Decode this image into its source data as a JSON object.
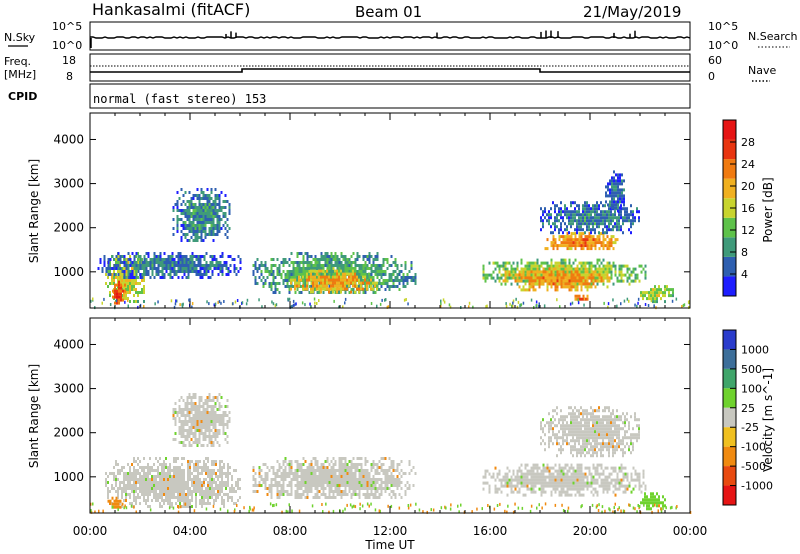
{
  "header": {
    "station": "Hankasalmi (fitACF)",
    "beam": "Beam 01",
    "date": "21/May/2019"
  },
  "top_panels": {
    "nsky_label": "N.Sky",
    "nsearch_label": "N.Search",
    "nsky_ticks": [
      "10^5",
      "10^0"
    ],
    "nsearch_ticks": [
      "10^5",
      "10^0"
    ],
    "freq_label_1": "Freq.",
    "freq_label_2": "[MHz]",
    "freq_ticks": [
      "18",
      "8"
    ],
    "nave_label": "Nave",
    "nave_ticks": [
      "60",
      "0"
    ],
    "cpid_label": "CPID",
    "cpid_text": "normal (fast stereo) 153"
  },
  "chart_data": [
    {
      "type": "heatmap",
      "title": "",
      "xlabel": "Time UT",
      "ylabel": "Slant Range [km]",
      "xticks": [
        "00:00",
        "04:00",
        "08:00",
        "12:00",
        "16:00",
        "20:00",
        "00:00"
      ],
      "xlim_hours": [
        0,
        24
      ],
      "ylim_km": [
        180,
        4600
      ],
      "yticks": [
        "1000",
        "2000",
        "3000",
        "4000"
      ],
      "colorbar": {
        "label": "Power [dB]",
        "ticks": [
          "4",
          "8",
          "12",
          "16",
          "20",
          "24",
          "28"
        ],
        "range": [
          0,
          30
        ],
        "colors": [
          "#1e1eff",
          "#2e5fb0",
          "#3f9a7a",
          "#5ec24a",
          "#c8d42e",
          "#f0b020",
          "#f07a10",
          "#e83510",
          "#e61414"
        ]
      },
      "regions": [
        {
          "t0": 0.6,
          "t1": 2.2,
          "r0": 300,
          "r1": 1450,
          "value": 16
        },
        {
          "t0": 0.8,
          "t1": 1.4,
          "r0": 300,
          "r1": 800,
          "value": 26
        },
        {
          "t0": 0.3,
          "t1": 6.0,
          "r0": 900,
          "r1": 1450,
          "value": 6
        },
        {
          "t0": 3.3,
          "t1": 5.6,
          "r0": 1700,
          "r1": 2900,
          "value": 7
        },
        {
          "t0": 6.5,
          "t1": 13.0,
          "r0": 500,
          "r1": 1450,
          "value": 10
        },
        {
          "t0": 8.0,
          "t1": 11.5,
          "r0": 550,
          "r1": 1050,
          "value": 20
        },
        {
          "t0": 15.7,
          "t1": 22.2,
          "r0": 700,
          "r1": 1300,
          "value": 14
        },
        {
          "t0": 16.5,
          "t1": 20.8,
          "r0": 600,
          "r1": 1100,
          "value": 21
        },
        {
          "t0": 18.1,
          "t1": 21.2,
          "r0": 1500,
          "r1": 1900,
          "value": 22
        },
        {
          "t0": 18.0,
          "t1": 22.0,
          "r0": 1900,
          "r1": 2600,
          "value": 6
        },
        {
          "t0": 20.6,
          "t1": 21.4,
          "r0": 2400,
          "r1": 3300,
          "value": 5
        },
        {
          "t0": 19.3,
          "t1": 20.0,
          "r0": 350,
          "r1": 550,
          "value": 24
        },
        {
          "t0": 22.0,
          "t1": 23.3,
          "r0": 350,
          "r1": 700,
          "value": 15
        }
      ]
    },
    {
      "type": "heatmap",
      "title": "",
      "xlabel": "Time UT",
      "ylabel": "Slant Range [km]",
      "xticks": [
        "00:00",
        "04:00",
        "08:00",
        "12:00",
        "16:00",
        "20:00",
        "00:00"
      ],
      "xlim_hours": [
        0,
        24
      ],
      "ylim_km": [
        180,
        4600
      ],
      "yticks": [
        "1000",
        "2000",
        "3000",
        "4000"
      ],
      "colorbar": {
        "label": "Velocity [m s^-1]",
        "ticks": [
          "1000",
          "500",
          "100",
          "25",
          "-25",
          "-100",
          "-500",
          "-1000"
        ],
        "colors": [
          "#2a3ccc",
          "#3d6f9a",
          "#3fa56a",
          "#6fd22e",
          "#c8c8c0",
          "#f0c020",
          "#f08a10",
          "#e84a10",
          "#e61414"
        ]
      },
      "regions": [
        {
          "t0": 0.6,
          "t1": 6.0,
          "r0": 300,
          "r1": 1450,
          "value": 0
        },
        {
          "t0": 3.3,
          "t1": 5.6,
          "r0": 1700,
          "r1": 2900,
          "value": 0
        },
        {
          "t0": 6.5,
          "t1": 13.0,
          "r0": 500,
          "r1": 1450,
          "value": 0
        },
        {
          "t0": 15.7,
          "t1": 22.2,
          "r0": 600,
          "r1": 1300,
          "value": 0
        },
        {
          "t0": 18.0,
          "t1": 22.0,
          "r0": 1500,
          "r1": 2600,
          "value": 0
        },
        {
          "t0": 22.0,
          "t1": 23.0,
          "r0": 300,
          "r1": 650,
          "value": 150
        },
        {
          "t0": 0.7,
          "t1": 1.3,
          "r0": 300,
          "r1": 550,
          "value": -150
        }
      ]
    }
  ]
}
